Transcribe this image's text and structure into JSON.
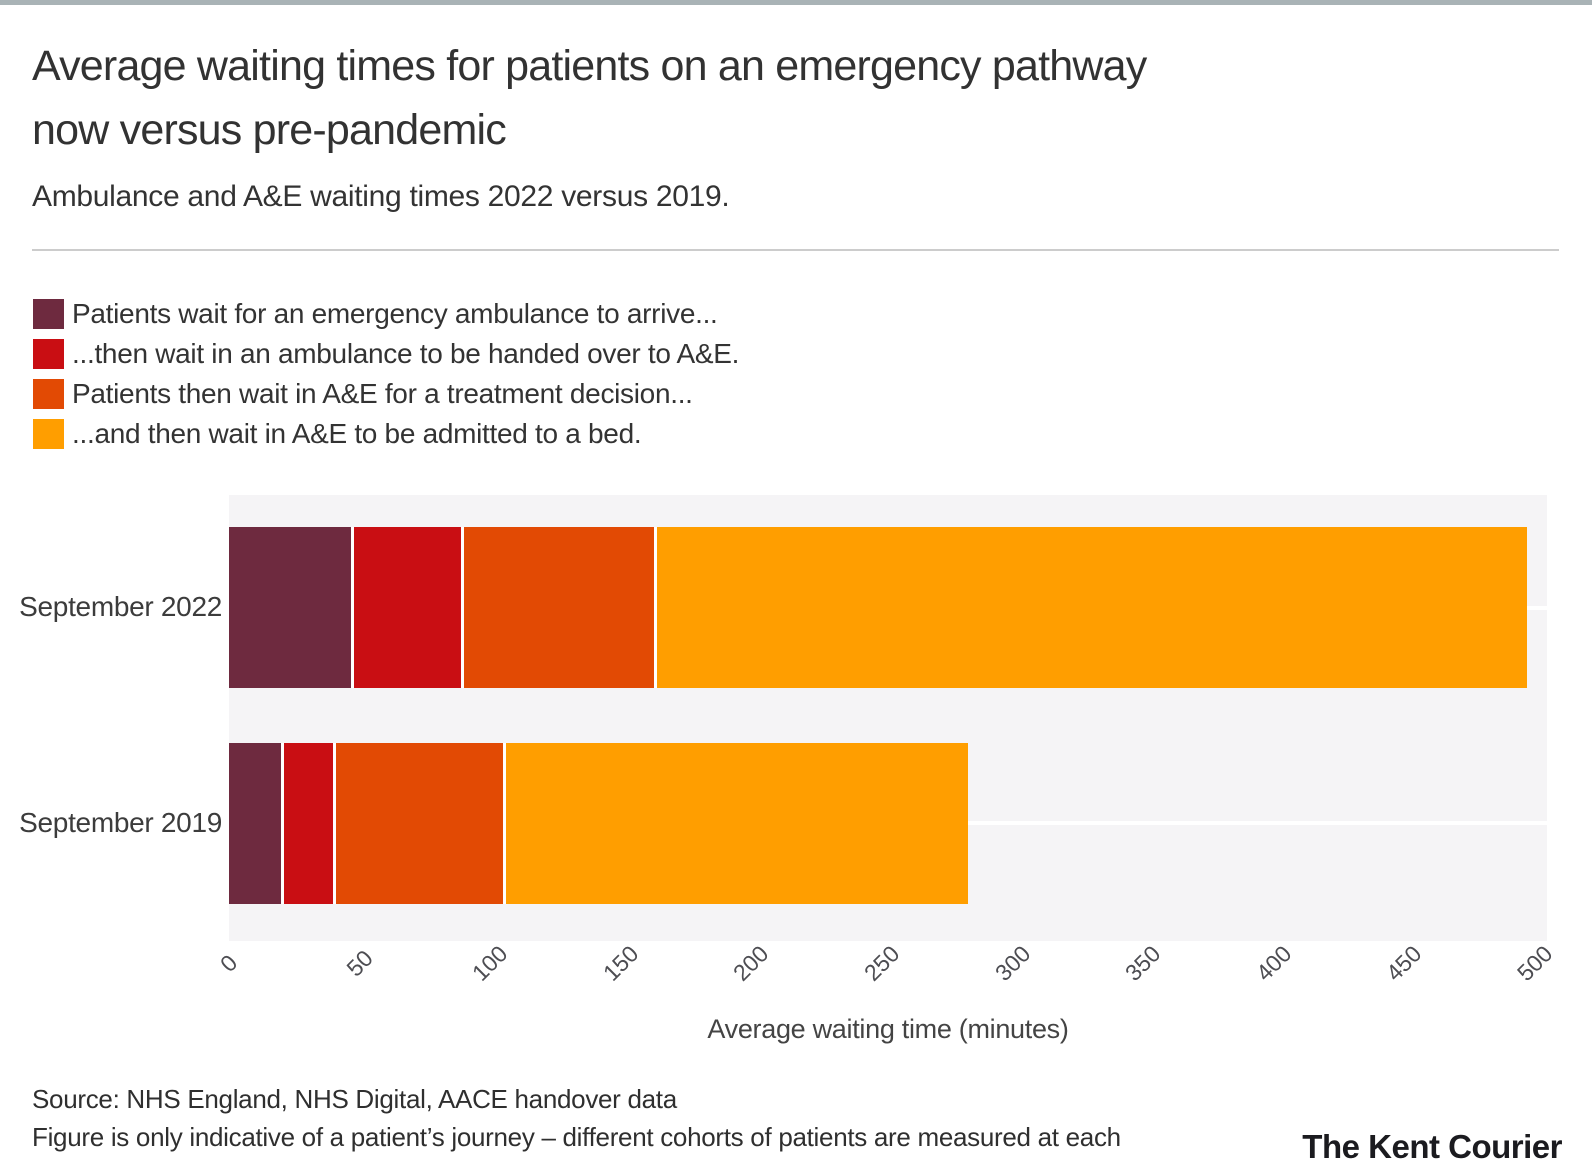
{
  "page": {
    "title_lines": [
      "Average waiting times for patients on an emergency pathway",
      "now versus pre-pandemic"
    ],
    "subtitle": "Ambulance and A&E waiting times 2022 versus 2019.",
    "source": "Source: NHS England, NHS Digital, AACE handover data",
    "footnote": "Figure is only indicative of a patient’s journey – different cohorts of patients are measured at each",
    "publisher": "The Kent Courier"
  },
  "chart_data": {
    "type": "bar",
    "orientation": "horizontal-stacked",
    "categories": [
      "September 2022",
      "September 2019"
    ],
    "series": [
      {
        "name": "Patients wait for an emergency ambulance to arrive...",
        "color": "#6E2A3F",
        "values": [
          48,
          21
        ]
      },
      {
        "name": "...then wait in an ambulance to be handed over to A&E.",
        "color": "#C90E13",
        "values": [
          42,
          20
        ]
      },
      {
        "name": "Patients then wait in A&E for a treatment decision...",
        "color": "#E24A04",
        "values": [
          74,
          65
        ]
      },
      {
        "name": "...and then wait in A&E to be admitted to a bed.",
        "color": "#FF9E00",
        "values": [
          333,
          177
        ]
      }
    ],
    "totals": [
      497,
      283
    ],
    "xlabel": "Average waiting time (minutes)",
    "xlim": [
      0,
      500
    ],
    "xticks": [
      0,
      50,
      100,
      150,
      200,
      250,
      300,
      350,
      400,
      450,
      500
    ],
    "grid": false,
    "legend_position": "top-left",
    "plot_background": "#F5F4F6",
    "bar_colors_note": "segments separated by thin white gaps"
  }
}
